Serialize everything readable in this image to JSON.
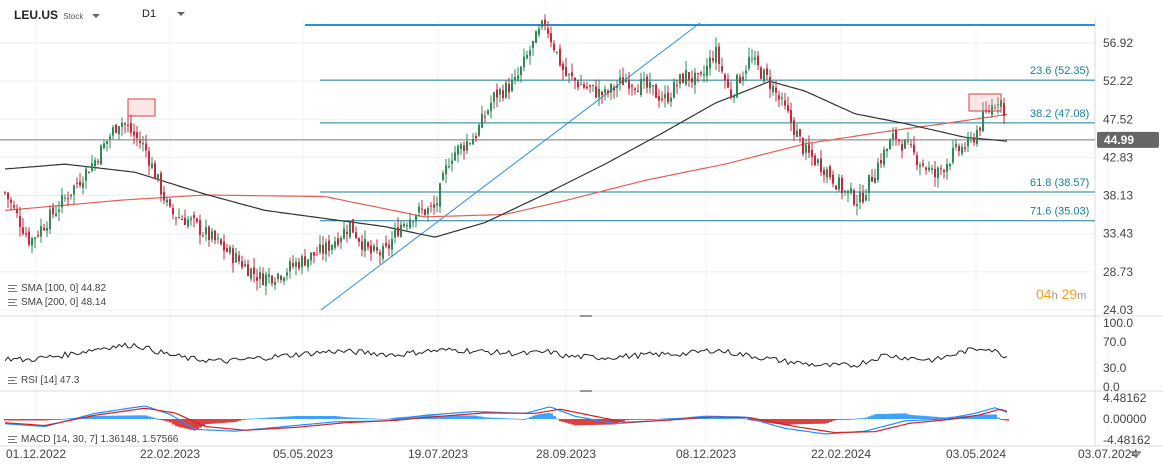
{
  "header": {
    "symbol": "LEU.US",
    "type": "Stock",
    "interval": "D1"
  },
  "price_label": "44.99",
  "timer": {
    "h": "04",
    "hu": "h",
    "m": "29",
    "mu": "m"
  },
  "legend": {
    "sma100": "SMA [100, 0] 44.82",
    "sma200": "SMA [200, 0] 48.14",
    "rsi": "RSI [14] 47.3",
    "macd": "MACD [14, 30, 7] 1.36148, 1.57566"
  },
  "colors": {
    "up": "#2e8b57",
    "down": "#c8283c",
    "sma100": "#333333",
    "sma200": "#e0605a",
    "fib": "#1a7f9a",
    "trend": "#2a8fd8",
    "price_badge": "#666666",
    "macd_line": "#1e90ff",
    "signal_line": "#d62020"
  },
  "chart_data": [
    {
      "type": "candlestick",
      "yticks": [
        "56.92",
        "52.22",
        "47.52",
        "42.83",
        "38.13",
        "33.43",
        "28.73",
        "24.03"
      ],
      "ylim": [
        24.03,
        61.0
      ],
      "xticks": [
        "01.12.2022",
        "22.02.2023",
        "05.05.2023",
        "19.07.2023",
        "28.09.2023",
        "08.12.2023",
        "22.02.2024",
        "03.05.2024",
        "03.07.2024"
      ],
      "fib_levels": [
        {
          "label": "23.6 (52.35)",
          "value": 52.35
        },
        {
          "label": "38.2 (47.08)",
          "value": 47.08
        },
        {
          "label": "61.8 (38.57)",
          "value": 38.57
        },
        {
          "label": "71.6 (35.03)",
          "value": 35.03
        }
      ],
      "last_price": 44.99,
      "close_anchors": [
        [
          0,
          38.5
        ],
        [
          25,
          32.5
        ],
        [
          55,
          37.0
        ],
        [
          90,
          42.5
        ],
        [
          115,
          47.5
        ],
        [
          140,
          44.0
        ],
        [
          165,
          36.0
        ],
        [
          185,
          35.0
        ],
        [
          205,
          33.0
        ],
        [
          230,
          30.5
        ],
        [
          255,
          28.0
        ],
        [
          275,
          28.5
        ],
        [
          295,
          30.0
        ],
        [
          320,
          31.5
        ],
        [
          345,
          34.5
        ],
        [
          365,
          31.0
        ],
        [
          380,
          31.0
        ],
        [
          395,
          34.5
        ],
        [
          410,
          36.0
        ],
        [
          430,
          36.5
        ],
        [
          445,
          43.0
        ],
        [
          470,
          45.5
        ],
        [
          490,
          50.5
        ],
        [
          510,
          52.0
        ],
        [
          525,
          56.0
        ],
        [
          540,
          59.5
        ],
        [
          560,
          53.0
        ],
        [
          580,
          51.5
        ],
        [
          600,
          50.5
        ],
        [
          620,
          52.5
        ],
        [
          640,
          51.5
        ],
        [
          660,
          50.0
        ],
        [
          680,
          53.0
        ],
        [
          695,
          52.0
        ],
        [
          710,
          56.0
        ],
        [
          725,
          50.5
        ],
        [
          745,
          55.0
        ],
        [
          765,
          52.0
        ],
        [
          785,
          47.5
        ],
        [
          800,
          43.5
        ],
        [
          820,
          41.5
        ],
        [
          840,
          38.5
        ],
        [
          855,
          37.5
        ],
        [
          875,
          42.5
        ],
        [
          890,
          45.5
        ],
        [
          910,
          43.0
        ],
        [
          930,
          40.5
        ],
        [
          950,
          43.5
        ],
        [
          965,
          44.5
        ],
        [
          980,
          48.0
        ],
        [
          995,
          50.5
        ],
        [
          1003,
          44.99
        ]
      ],
      "sma100_anchors": [
        [
          0,
          41.4
        ],
        [
          60,
          42.0
        ],
        [
          130,
          41.0
        ],
        [
          200,
          38.3
        ],
        [
          260,
          36.3
        ],
        [
          320,
          35.3
        ],
        [
          380,
          34.3
        ],
        [
          430,
          33.0
        ],
        [
          480,
          34.8
        ],
        [
          540,
          38.3
        ],
        [
          600,
          42.0
        ],
        [
          660,
          46.0
        ],
        [
          710,
          49.5
        ],
        [
          765,
          52.2
        ],
        [
          800,
          51.0
        ],
        [
          850,
          48.2
        ],
        [
          900,
          47.0
        ],
        [
          960,
          45.3
        ],
        [
          1003,
          44.82
        ]
      ],
      "sma200_anchors": [
        [
          0,
          36.3
        ],
        [
          120,
          37.6
        ],
        [
          200,
          38.2
        ],
        [
          320,
          38.0
        ],
        [
          420,
          35.5
        ],
        [
          500,
          35.8
        ],
        [
          560,
          37.5
        ],
        [
          640,
          40.0
        ],
        [
          720,
          42.0
        ],
        [
          800,
          44.5
        ],
        [
          880,
          46.0
        ],
        [
          940,
          47.0
        ],
        [
          1003,
          48.14
        ]
      ]
    },
    {
      "type": "line",
      "name": "RSI [14]",
      "yticks": [
        "100.0",
        "70.0",
        "30.0",
        "0.0"
      ],
      "ylim": [
        0,
        100
      ],
      "anchors": [
        [
          0,
          45
        ],
        [
          20,
          42
        ],
        [
          60,
          50
        ],
        [
          100,
          62
        ],
        [
          130,
          66
        ],
        [
          160,
          52
        ],
        [
          185,
          44
        ],
        [
          220,
          40
        ],
        [
          260,
          46
        ],
        [
          300,
          52
        ],
        [
          330,
          56
        ],
        [
          360,
          54
        ],
        [
          390,
          50
        ],
        [
          420,
          56
        ],
        [
          450,
          58
        ],
        [
          490,
          54
        ],
        [
          520,
          52
        ],
        [
          545,
          55
        ],
        [
          560,
          48
        ],
        [
          600,
          46
        ],
        [
          640,
          50
        ],
        [
          680,
          52
        ],
        [
          710,
          58
        ],
        [
          740,
          50
        ],
        [
          780,
          40
        ],
        [
          820,
          33
        ],
        [
          850,
          34
        ],
        [
          880,
          50
        ],
        [
          900,
          46
        ],
        [
          930,
          42
        ],
        [
          960,
          56
        ],
        [
          980,
          62
        ],
        [
          1003,
          47.3
        ]
      ]
    },
    {
      "type": "macd",
      "yticks": [
        "4.48162",
        "0.00000",
        "-4.48162"
      ],
      "ylim": [
        -4.48162,
        4.48162
      ],
      "macd_anchors": [
        [
          0,
          -1.0
        ],
        [
          40,
          -1.6
        ],
        [
          90,
          1.2
        ],
        [
          140,
          2.8
        ],
        [
          165,
          1.0
        ],
        [
          190,
          -2.2
        ],
        [
          230,
          -2.6
        ],
        [
          280,
          -1.6
        ],
        [
          330,
          -0.6
        ],
        [
          380,
          -0.4
        ],
        [
          420,
          0.8
        ],
        [
          470,
          1.6
        ],
        [
          520,
          1.2
        ],
        [
          545,
          2.6
        ],
        [
          570,
          0.6
        ],
        [
          610,
          -1.0
        ],
        [
          650,
          -0.4
        ],
        [
          700,
          0.6
        ],
        [
          740,
          0.4
        ],
        [
          780,
          -2.0
        ],
        [
          820,
          -3.2
        ],
        [
          860,
          -2.6
        ],
        [
          900,
          -0.4
        ],
        [
          940,
          0.0
        ],
        [
          970,
          1.2
        ],
        [
          990,
          2.4
        ],
        [
          1003,
          1.36
        ]
      ],
      "signal_anchors": [
        [
          0,
          -0.8
        ],
        [
          40,
          -1.4
        ],
        [
          90,
          0.8
        ],
        [
          140,
          2.3
        ],
        [
          170,
          1.3
        ],
        [
          200,
          -1.6
        ],
        [
          240,
          -2.4
        ],
        [
          290,
          -1.8
        ],
        [
          340,
          -0.8
        ],
        [
          390,
          -0.3
        ],
        [
          430,
          0.5
        ],
        [
          480,
          1.3
        ],
        [
          530,
          1.2
        ],
        [
          555,
          2.1
        ],
        [
          585,
          0.8
        ],
        [
          620,
          -0.7
        ],
        [
          660,
          -0.3
        ],
        [
          705,
          0.4
        ],
        [
          745,
          0.3
        ],
        [
          790,
          -1.6
        ],
        [
          830,
          -2.9
        ],
        [
          870,
          -2.7
        ],
        [
          905,
          -0.9
        ],
        [
          945,
          -0.1
        ],
        [
          975,
          0.9
        ],
        [
          995,
          2.1
        ],
        [
          1003,
          1.58
        ]
      ]
    }
  ]
}
